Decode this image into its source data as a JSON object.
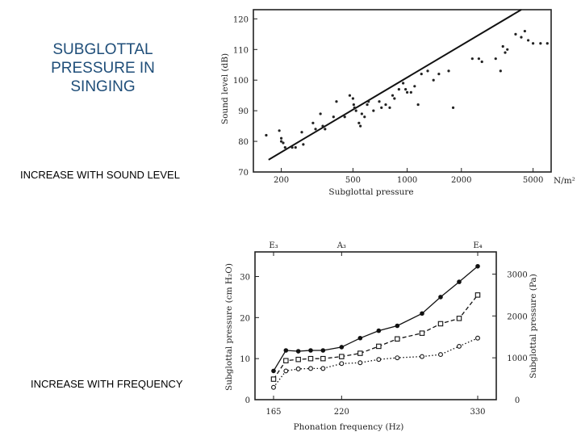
{
  "slide": {
    "title_lines": [
      "SUBGLOTTAL",
      "PRESSURE IN",
      "SINGING"
    ],
    "caption_top": "INCREASE WITH SOUND LEVEL",
    "caption_bottom": "INCREASE WITH FREQUENCY",
    "title_color": "#1f4e79"
  },
  "chart_data": [
    {
      "type": "scatter",
      "title": "",
      "xlabel": "Subglottal pressure",
      "xunit": "N/m²",
      "ylabel": "Sound level (dB)",
      "xscale": "log",
      "xlim": [
        140,
        6300
      ],
      "ylim": [
        70,
        123
      ],
      "xticks": [
        200,
        500,
        1000,
        2000,
        5000
      ],
      "xtick_labels": [
        "200",
        "500",
        "1000",
        "2000",
        "5000"
      ],
      "yticks": [
        70,
        80,
        90,
        100,
        110,
        120
      ],
      "ytick_labels": [
        "70",
        "80",
        "90",
        "100",
        "110",
        "120"
      ],
      "fit_line": {
        "x": [
          170,
          4300
        ],
        "y": [
          74,
          123
        ]
      },
      "points": [
        [
          165,
          82
        ],
        [
          195,
          83.5
        ],
        [
          200,
          80
        ],
        [
          200,
          81
        ],
        [
          205,
          79.5
        ],
        [
          210,
          78
        ],
        [
          230,
          78
        ],
        [
          240,
          78
        ],
        [
          260,
          83
        ],
        [
          265,
          79
        ],
        [
          300,
          86
        ],
        [
          310,
          84
        ],
        [
          330,
          89
        ],
        [
          340,
          85
        ],
        [
          350,
          84
        ],
        [
          390,
          88
        ],
        [
          405,
          93
        ],
        [
          450,
          88
        ],
        [
          480,
          95
        ],
        [
          500,
          94
        ],
        [
          505,
          92
        ],
        [
          510,
          91
        ],
        [
          520,
          90
        ],
        [
          540,
          86
        ],
        [
          550,
          85
        ],
        [
          560,
          89
        ],
        [
          580,
          88
        ],
        [
          600,
          92
        ],
        [
          610,
          93
        ],
        [
          650,
          90
        ],
        [
          700,
          93
        ],
        [
          720,
          91
        ],
        [
          760,
          92
        ],
        [
          800,
          91
        ],
        [
          830,
          95
        ],
        [
          850,
          94
        ],
        [
          900,
          97
        ],
        [
          950,
          99
        ],
        [
          980,
          97
        ],
        [
          1000,
          96
        ],
        [
          1050,
          96
        ],
        [
          1100,
          98
        ],
        [
          1150,
          92
        ],
        [
          1200,
          102
        ],
        [
          1300,
          103
        ],
        [
          1400,
          100
        ],
        [
          1500,
          102
        ],
        [
          1700,
          103
        ],
        [
          1800,
          91
        ],
        [
          2300,
          107
        ],
        [
          2500,
          107
        ],
        [
          2600,
          106
        ],
        [
          3100,
          107
        ],
        [
          3300,
          103
        ],
        [
          3400,
          111
        ],
        [
          3500,
          109
        ],
        [
          3600,
          110
        ],
        [
          4000,
          115
        ],
        [
          4300,
          114
        ],
        [
          4500,
          116
        ],
        [
          4700,
          113
        ],
        [
          5000,
          112
        ],
        [
          5500,
          112
        ],
        [
          6000,
          112
        ]
      ]
    },
    {
      "type": "line",
      "title": "",
      "xlabel": "Phonation frequency (Hz)",
      "ylabel": "Subglottal pressure (cm H₂O)",
      "y2label": "Subglottal pressure (Pa)",
      "xlim": [
        150,
        345
      ],
      "ylim": [
        0,
        36
      ],
      "y2lim": [
        0,
        3530
      ],
      "xticks": [
        165,
        220,
        330
      ],
      "xtick_labels": [
        "165",
        "220",
        "330"
      ],
      "yticks": [
        0,
        10,
        20,
        30
      ],
      "ytick_labels": [
        "0",
        "10",
        "20",
        "30"
      ],
      "y2ticks": [
        0,
        1000,
        2000,
        3000
      ],
      "y2tick_labels": [
        "0",
        "1000",
        "2000",
        "3000"
      ],
      "top_ticks": [
        165,
        220,
        330
      ],
      "top_labels": [
        "E₃",
        "A₃",
        "E₄"
      ],
      "x": [
        165,
        175,
        185,
        195,
        205,
        220,
        235,
        250,
        265,
        285,
        300,
        315,
        330
      ],
      "series": [
        {
          "name": "filled circles",
          "marker": "filled-circle",
          "style": "solid",
          "values": [
            7,
            12,
            11.8,
            12,
            12,
            12.8,
            15,
            16.8,
            18,
            21,
            25,
            28.7,
            32.5
          ]
        },
        {
          "name": "open squares",
          "marker": "open-square",
          "style": "dashed",
          "values": [
            5,
            9.5,
            9.8,
            10,
            10,
            10.5,
            11.3,
            13,
            14.8,
            16.2,
            18.5,
            19.8,
            25.5
          ]
        },
        {
          "name": "open circles",
          "marker": "open-circle",
          "style": "dotted",
          "values": [
            3,
            7,
            7.5,
            7.6,
            7.6,
            8.8,
            9,
            9.8,
            10.2,
            10.5,
            11,
            13,
            15
          ]
        }
      ]
    }
  ]
}
